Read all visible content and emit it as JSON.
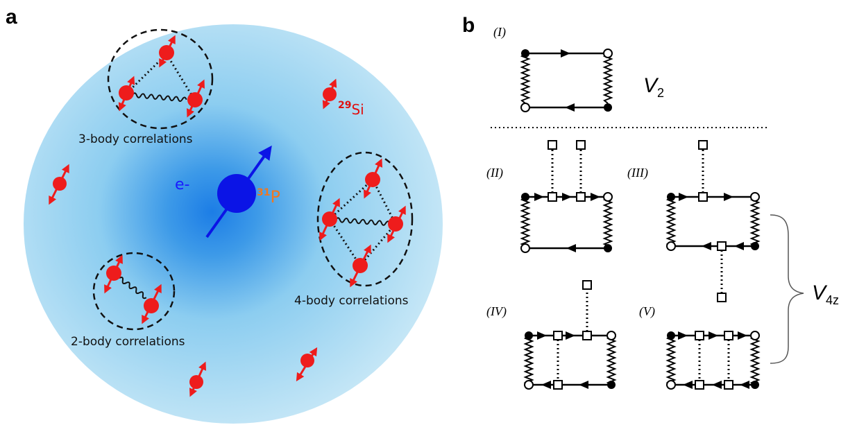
{
  "panels": {
    "a": {
      "letter": "a",
      "electron_label": "e-",
      "phosphorus": {
        "mass": "31",
        "symbol": "P"
      },
      "silicon": {
        "mass": "29",
        "symbol": "Si"
      },
      "correlations": {
        "three_body": "3-body correlations",
        "four_body": "4-body correlations",
        "two_body": "2-body correlations"
      }
    },
    "b": {
      "letter": "b",
      "diagram_labels": [
        "(I)",
        "(II)",
        "(III)",
        "(IV)",
        "(V)"
      ],
      "v2": {
        "main": "V",
        "sub": "2"
      },
      "v4z": {
        "main": "V",
        "sub": "4z"
      }
    }
  },
  "colors": {
    "halo_center": "#1e7fe6",
    "halo_edge": "#cdeaf7",
    "nucleus_blue": "#0b14e6",
    "spin_red": "#ee1c1c",
    "p_orange": "#f07820"
  }
}
